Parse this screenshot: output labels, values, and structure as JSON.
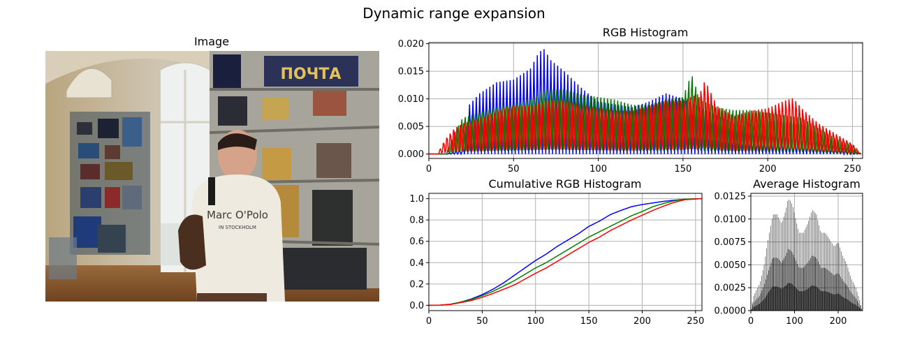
{
  "figure": {
    "title": "Dynamic range expansion"
  },
  "image_panel": {
    "title": "Image",
    "photo": {
      "description_icon": "photo-icon",
      "sign_text": "ПОЧТА",
      "sweatshirt_text": "Marc O'Polo",
      "sweatshirt_subtext": "IN STOCKHOLM"
    }
  },
  "chart_data": [
    {
      "id": "rgb_histogram",
      "type": "line",
      "title": "RGB Histogram",
      "xlabel": "",
      "ylabel": "",
      "xlim": [
        0,
        256
      ],
      "ylim": [
        -0.0008,
        0.0202
      ],
      "xticks": [
        0,
        50,
        100,
        150,
        200,
        250
      ],
      "yticks": [
        0.0,
        0.005,
        0.01,
        0.015,
        0.02
      ],
      "ytick_labels": [
        "0.000",
        "0.005",
        "0.010",
        "0.015",
        "0.020"
      ],
      "grid": true,
      "colors": {
        "blue": "#0000ff",
        "green": "#008000",
        "red": "#ff0000"
      },
      "series_envelope": [
        {
          "color": "blue",
          "x": [
            0,
            10,
            20,
            24,
            30,
            40,
            50,
            60,
            65,
            68,
            72,
            80,
            90,
            100,
            110,
            120,
            130,
            140,
            150,
            160,
            170,
            180,
            190,
            200,
            210,
            220,
            230,
            240,
            250,
            255
          ],
          "y": [
            0,
            0,
            0.0008,
            0.009,
            0.011,
            0.013,
            0.0135,
            0.0155,
            0.0185,
            0.019,
            0.017,
            0.015,
            0.012,
            0.0095,
            0.009,
            0.0085,
            0.0095,
            0.011,
            0.01,
            0.0085,
            0.007,
            0.0055,
            0.004,
            0.0035,
            0.003,
            0.0025,
            0.002,
            0.0015,
            0.0008,
            0
          ]
        },
        {
          "color": "green",
          "x": [
            0,
            10,
            15,
            20,
            30,
            40,
            50,
            60,
            70,
            80,
            90,
            100,
            110,
            120,
            130,
            140,
            150,
            155,
            160,
            170,
            180,
            190,
            200,
            210,
            220,
            230,
            240,
            250,
            255
          ],
          "y": [
            0,
            0,
            0.004,
            0.007,
            0.008,
            0.009,
            0.0095,
            0.0105,
            0.0125,
            0.0125,
            0.0115,
            0.011,
            0.0105,
            0.0095,
            0.0095,
            0.0105,
            0.011,
            0.0155,
            0.0105,
            0.009,
            0.0085,
            0.0085,
            0.008,
            0.0075,
            0.007,
            0.005,
            0.003,
            0.0015,
            0
          ]
        },
        {
          "color": "red",
          "x": [
            0,
            5,
            10,
            15,
            20,
            30,
            40,
            50,
            60,
            70,
            80,
            90,
            100,
            110,
            120,
            130,
            140,
            150,
            160,
            163,
            170,
            180,
            190,
            200,
            210,
            215,
            220,
            230,
            240,
            250,
            255
          ],
          "y": [
            0,
            0,
            0.003,
            0.005,
            0.006,
            0.007,
            0.0085,
            0.0095,
            0.0095,
            0.0105,
            0.0105,
            0.0095,
            0.009,
            0.0085,
            0.0085,
            0.0095,
            0.0105,
            0.0105,
            0.012,
            0.0145,
            0.0095,
            0.0075,
            0.0085,
            0.009,
            0.0105,
            0.011,
            0.009,
            0.006,
            0.004,
            0.002,
            0
          ]
        }
      ]
    },
    {
      "id": "cumulative_rgb_histogram",
      "type": "line",
      "title": "Cumulative RGB Histogram",
      "xlabel": "",
      "ylabel": "",
      "xlim": [
        0,
        256
      ],
      "ylim": [
        -0.05,
        1.05
      ],
      "xticks": [
        0,
        50,
        100,
        150,
        200,
        250
      ],
      "yticks": [
        0.0,
        0.2,
        0.4,
        0.6,
        0.8,
        1.0
      ],
      "ytick_labels": [
        "0.0",
        "0.2",
        "0.4",
        "0.6",
        "0.8",
        "1.0"
      ],
      "grid": true,
      "series": [
        {
          "color": "#0000ff",
          "x": [
            0,
            10,
            20,
            30,
            40,
            50,
            60,
            70,
            80,
            90,
            100,
            110,
            120,
            130,
            140,
            150,
            160,
            170,
            180,
            190,
            200,
            210,
            220,
            230,
            240,
            255
          ],
          "y": [
            0,
            0.0,
            0.008,
            0.03,
            0.06,
            0.1,
            0.15,
            0.21,
            0.28,
            0.35,
            0.42,
            0.48,
            0.55,
            0.61,
            0.67,
            0.74,
            0.79,
            0.85,
            0.89,
            0.925,
            0.945,
            0.96,
            0.975,
            0.985,
            0.995,
            1.0
          ]
        },
        {
          "color": "#008000",
          "x": [
            0,
            10,
            20,
            30,
            40,
            50,
            60,
            70,
            80,
            90,
            100,
            110,
            120,
            130,
            140,
            150,
            160,
            170,
            180,
            190,
            200,
            210,
            220,
            230,
            240,
            255
          ],
          "y": [
            0,
            0.001,
            0.01,
            0.03,
            0.055,
            0.09,
            0.13,
            0.18,
            0.23,
            0.29,
            0.35,
            0.4,
            0.46,
            0.52,
            0.58,
            0.64,
            0.69,
            0.74,
            0.79,
            0.84,
            0.88,
            0.925,
            0.955,
            0.98,
            0.995,
            1.0
          ]
        },
        {
          "color": "#ff0000",
          "x": [
            0,
            10,
            20,
            30,
            40,
            50,
            60,
            70,
            80,
            90,
            100,
            110,
            120,
            130,
            140,
            150,
            160,
            170,
            180,
            190,
            200,
            210,
            220,
            230,
            240,
            255
          ],
          "y": [
            0,
            0.001,
            0.008,
            0.025,
            0.045,
            0.075,
            0.11,
            0.15,
            0.19,
            0.245,
            0.3,
            0.35,
            0.41,
            0.47,
            0.53,
            0.59,
            0.64,
            0.7,
            0.75,
            0.8,
            0.845,
            0.89,
            0.93,
            0.965,
            0.99,
            1.0
          ]
        }
      ]
    },
    {
      "id": "average_histogram",
      "type": "bar",
      "title": "Average Histogram",
      "xlabel": "",
      "ylabel": "",
      "xlim": [
        0,
        256
      ],
      "ylim": [
        0,
        0.0128
      ],
      "xticks": [
        0,
        100,
        200
      ],
      "yticks": [
        0.0,
        0.0025,
        0.005,
        0.0075,
        0.01,
        0.0125
      ],
      "ytick_labels": [
        "0.0000",
        "0.0025",
        "0.0050",
        "0.0075",
        "0.0100",
        "0.0125"
      ],
      "grid": true,
      "bar_color": "#000000",
      "envelope": {
        "x": [
          0,
          5,
          10,
          20,
          30,
          40,
          50,
          60,
          70,
          80,
          85,
          90,
          95,
          100,
          110,
          120,
          130,
          140,
          150,
          160,
          170,
          180,
          190,
          200,
          210,
          220,
          230,
          240,
          250,
          255
        ],
        "y": [
          0,
          0.0015,
          0.002,
          0.003,
          0.005,
          0.008,
          0.0105,
          0.0105,
          0.0095,
          0.011,
          0.0122,
          0.012,
          0.0115,
          0.0105,
          0.0085,
          0.0085,
          0.0095,
          0.011,
          0.0105,
          0.0085,
          0.0085,
          0.0078,
          0.007,
          0.0075,
          0.006,
          0.005,
          0.0035,
          0.0025,
          0.001,
          0
        ]
      }
    }
  ]
}
